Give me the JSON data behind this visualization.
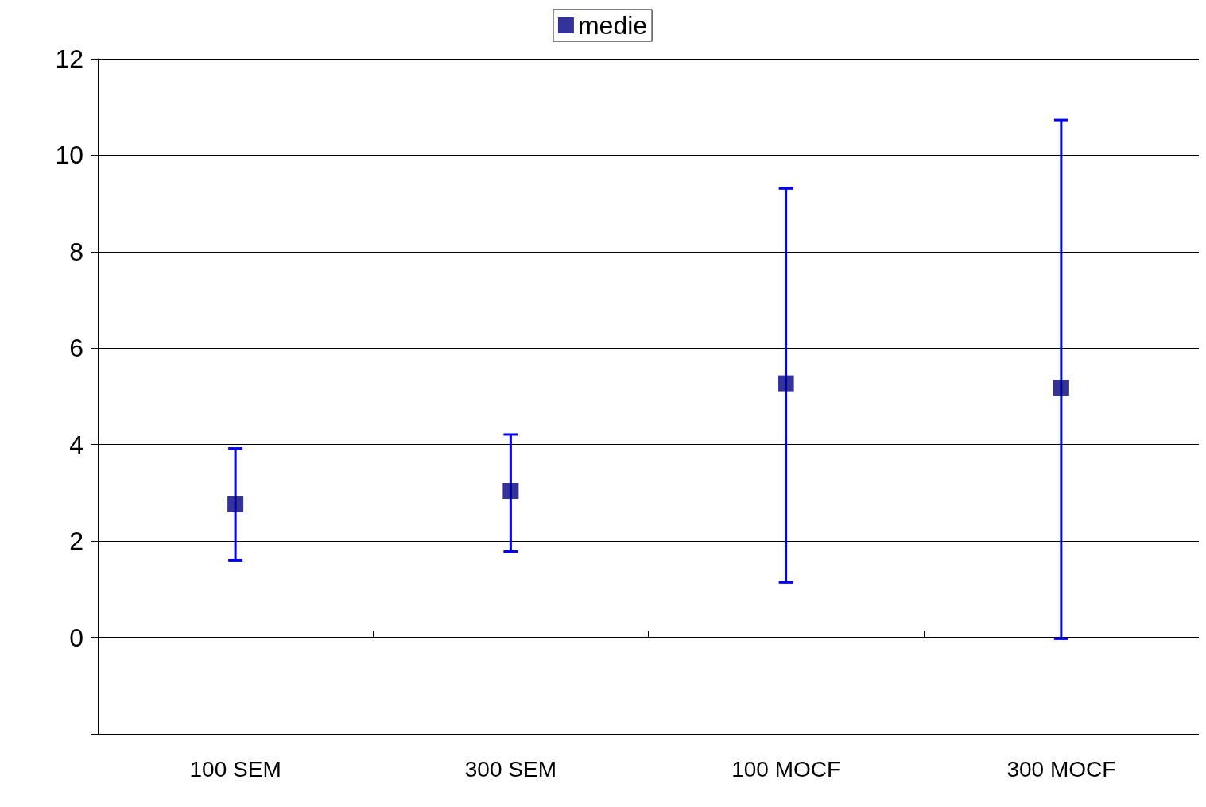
{
  "chart_data": {
    "type": "scatter",
    "categories": [
      "100 SEM",
      "300 SEM",
      "100 MOCF",
      "300 MOCF"
    ],
    "series": [
      {
        "name": "medie",
        "color": "#000080",
        "values": [
          2.76,
          3.04,
          5.27,
          5.18
        ],
        "errors": [
          [
            1.6,
            3.92
          ],
          [
            1.78,
            4.21
          ],
          [
            1.14,
            9.31
          ],
          [
            -0.03,
            10.73
          ]
        ]
      }
    ],
    "ylim": [
      -2,
      12
    ],
    "yticks": [
      {
        "value": -2,
        "label": null
      },
      0,
      2,
      4,
      6,
      8,
      10,
      12
    ],
    "grid": "y",
    "legend": "top",
    "marker": "square"
  }
}
